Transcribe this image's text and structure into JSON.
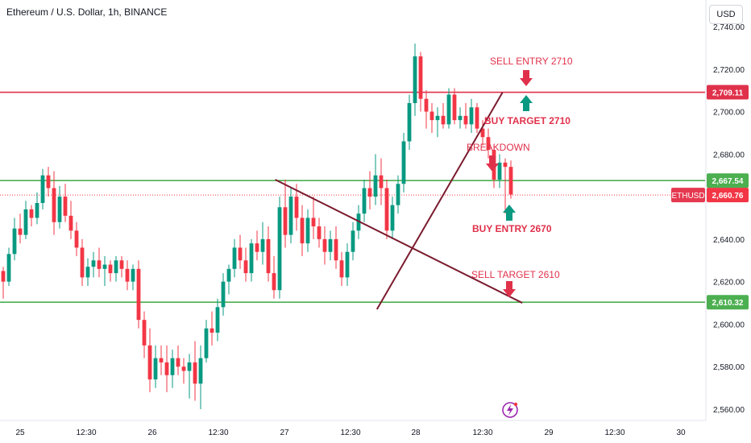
{
  "header": {
    "title": "Ethereum / U.S. Dollar, 1h, BINANCE",
    "currency_button": "USD"
  },
  "colors": {
    "up": "#089981",
    "down": "#f23645",
    "level_red": "#e0314b",
    "level_green": "#4caf50",
    "trend": "#7b1b2e",
    "price_tag": "#f23645",
    "ethusd_tag": "#e53950"
  },
  "chart_data": {
    "type": "candlestick",
    "symbol": "ETHUSD",
    "y_axis": {
      "min": 2556,
      "max": 2742,
      "ticks": [
        2560,
        2580,
        2600,
        2620,
        2640,
        2660,
        2680,
        2700,
        2720,
        2740
      ],
      "tick_labels": [
        "2,560.00",
        "2,580.00",
        "2,600.00",
        "2,620.00",
        "2,640.00",
        "2,660.00",
        "2,680.00",
        "2,700.00",
        "2,720.00",
        "2,740.00"
      ]
    },
    "x_axis": {
      "labels": [
        "25",
        "12:30",
        "26",
        "12:30",
        "27",
        "12:30",
        "28",
        "12:30",
        "29",
        "12:30",
        "30"
      ]
    },
    "levels": [
      {
        "name": "resistance",
        "value": 2709.11,
        "label": "2,709.11",
        "color": "red"
      },
      {
        "name": "support-upper",
        "value": 2667.54,
        "label": "2,667.54",
        "color": "green"
      },
      {
        "name": "support-lower",
        "value": 2610.32,
        "label": "2,610.32",
        "color": "green"
      }
    ],
    "current_price": {
      "value": 2660.76,
      "label": "2,660.76",
      "ticker": "ETHUSD"
    },
    "trendlines": [
      {
        "name": "descending",
        "from": [
          26.93,
          2668
        ],
        "to": [
          28.8,
          2610
        ]
      },
      {
        "name": "ascending",
        "from": [
          27.7,
          2607
        ],
        "to": [
          28.65,
          2709
        ]
      }
    ],
    "annotations": [
      {
        "text": "SELL ENTRY 2710",
        "color": "red"
      },
      {
        "text": "BUY TARGET  2710",
        "color": "red"
      },
      {
        "text": "BREAKDOWN",
        "color": "red"
      },
      {
        "text": "BUY ENTRY 2670",
        "color": "red"
      },
      {
        "text": "SELL TARGET 2610",
        "color": "red"
      }
    ],
    "candles": [
      [
        2625,
        2627,
        2612,
        2620
      ],
      [
        2620,
        2636,
        2618,
        2633
      ],
      [
        2633,
        2650,
        2630,
        2645
      ],
      [
        2645,
        2652,
        2638,
        2642
      ],
      [
        2642,
        2658,
        2640,
        2654
      ],
      [
        2654,
        2656,
        2646,
        2650
      ],
      [
        2650,
        2662,
        2647,
        2657
      ],
      [
        2657,
        2673,
        2654,
        2670
      ],
      [
        2670,
        2674,
        2660,
        2664
      ],
      [
        2664,
        2672,
        2642,
        2648
      ],
      [
        2648,
        2665,
        2645,
        2660
      ],
      [
        2660,
        2666,
        2648,
        2651
      ],
      [
        2651,
        2658,
        2640,
        2644
      ],
      [
        2644,
        2648,
        2632,
        2636
      ],
      [
        2636,
        2640,
        2618,
        2622
      ],
      [
        2622,
        2631,
        2618,
        2627
      ],
      [
        2627,
        2634,
        2622,
        2630
      ],
      [
        2630,
        2636,
        2622,
        2626
      ],
      [
        2626,
        2632,
        2618,
        2628
      ],
      [
        2628,
        2630,
        2620,
        2624
      ],
      [
        2624,
        2632,
        2620,
        2630
      ],
      [
        2630,
        2632,
        2622,
        2626
      ],
      [
        2626,
        2630,
        2616,
        2620
      ],
      [
        2620,
        2628,
        2616,
        2626
      ],
      [
        2626,
        2630,
        2598,
        2602
      ],
      [
        2602,
        2606,
        2584,
        2590
      ],
      [
        2590,
        2598,
        2568,
        2574
      ],
      [
        2574,
        2590,
        2570,
        2584
      ],
      [
        2584,
        2590,
        2576,
        2582
      ],
      [
        2582,
        2590,
        2568,
        2576
      ],
      [
        2576,
        2588,
        2570,
        2584
      ],
      [
        2584,
        2590,
        2576,
        2580
      ],
      [
        2580,
        2584,
        2572,
        2578
      ],
      [
        2578,
        2586,
        2565,
        2582
      ],
      [
        2582,
        2592,
        2564,
        2572
      ],
      [
        2572,
        2590,
        2560,
        2584
      ],
      [
        2584,
        2602,
        2582,
        2598
      ],
      [
        2598,
        2606,
        2590,
        2596
      ],
      [
        2596,
        2612,
        2592,
        2608
      ],
      [
        2608,
        2624,
        2604,
        2620
      ],
      [
        2620,
        2628,
        2614,
        2626
      ],
      [
        2626,
        2640,
        2622,
        2636
      ],
      [
        2636,
        2642,
        2626,
        2630
      ],
      [
        2630,
        2636,
        2620,
        2624
      ],
      [
        2624,
        2640,
        2620,
        2638
      ],
      [
        2638,
        2644,
        2630,
        2634
      ],
      [
        2634,
        2648,
        2628,
        2640
      ],
      [
        2640,
        2646,
        2620,
        2624
      ],
      [
        2624,
        2632,
        2612,
        2616
      ],
      [
        2616,
        2660,
        2612,
        2655
      ],
      [
        2655,
        2668,
        2636,
        2642
      ],
      [
        2642,
        2664,
        2638,
        2660
      ],
      [
        2660,
        2666,
        2644,
        2650
      ],
      [
        2650,
        2656,
        2632,
        2638
      ],
      [
        2638,
        2654,
        2634,
        2650
      ],
      [
        2650,
        2660,
        2640,
        2646
      ],
      [
        2646,
        2650,
        2636,
        2640
      ],
      [
        2640,
        2646,
        2628,
        2634
      ],
      [
        2634,
        2644,
        2630,
        2640
      ],
      [
        2640,
        2646,
        2626,
        2630
      ],
      [
        2630,
        2634,
        2618,
        2622
      ],
      [
        2622,
        2638,
        2618,
        2634
      ],
      [
        2634,
        2648,
        2630,
        2644
      ],
      [
        2644,
        2656,
        2640,
        2652
      ],
      [
        2652,
        2668,
        2648,
        2664
      ],
      [
        2664,
        2672,
        2654,
        2660
      ],
      [
        2660,
        2680,
        2656,
        2670
      ],
      [
        2670,
        2678,
        2656,
        2664
      ],
      [
        2664,
        2668,
        2640,
        2644
      ],
      [
        2644,
        2660,
        2640,
        2656
      ],
      [
        2656,
        2670,
        2652,
        2666
      ],
      [
        2666,
        2690,
        2662,
        2686
      ],
      [
        2686,
        2708,
        2682,
        2704
      ],
      [
        2704,
        2732,
        2698,
        2726
      ],
      [
        2726,
        2728,
        2700,
        2706
      ],
      [
        2706,
        2710,
        2692,
        2700
      ],
      [
        2700,
        2704,
        2690,
        2696
      ],
      [
        2696,
        2702,
        2688,
        2698
      ],
      [
        2698,
        2704,
        2692,
        2694
      ],
      [
        2694,
        2711,
        2692,
        2708
      ],
      [
        2708,
        2711,
        2694,
        2696
      ],
      [
        2696,
        2702,
        2692,
        2698
      ],
      [
        2698,
        2704,
        2692,
        2694
      ],
      [
        2694,
        2706,
        2690,
        2702
      ],
      [
        2702,
        2704,
        2690,
        2692
      ],
      [
        2692,
        2696,
        2684,
        2688
      ],
      [
        2688,
        2692,
        2678,
        2682
      ],
      [
        2682,
        2684,
        2664,
        2668
      ],
      [
        2668,
        2680,
        2664,
        2676
      ],
      [
        2676,
        2678,
        2652,
        2674
      ],
      [
        2674,
        2677,
        2659,
        2661
      ]
    ]
  }
}
